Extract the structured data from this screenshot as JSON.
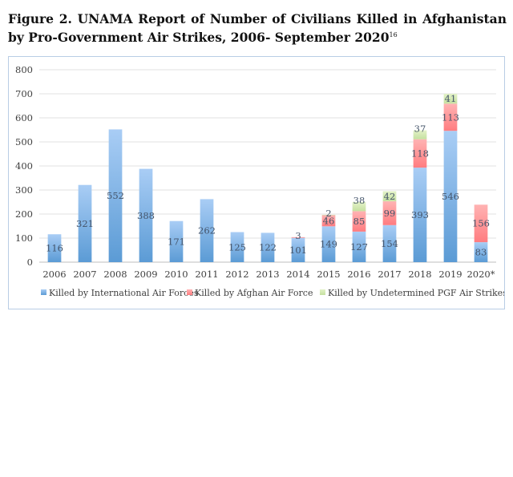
{
  "figure": {
    "title": "Figure 2. UNAMA Report of Number of Civilians Killed in Afghanistan by Pro-Government Air Strikes, 2006- September 2020",
    "footnote_ref": "16"
  },
  "chart_data": {
    "type": "bar",
    "stacked": true,
    "title": "",
    "xlabel": "",
    "ylabel": "",
    "ylim": [
      0,
      800
    ],
    "yticks": [
      "0",
      "100",
      "200",
      "300",
      "400",
      "500",
      "600",
      "700",
      "800"
    ],
    "grid": true,
    "legend_position": "bottom",
    "categories": [
      "2006",
      "2007",
      "2008",
      "2009",
      "2010",
      "2011",
      "2012",
      "2013",
      "2014",
      "2015",
      "2016",
      "2017",
      "2018",
      "2019",
      "2020*"
    ],
    "series": [
      {
        "name": "Killed by International Air Forces",
        "color": "#5b9bd5",
        "values": [
          116,
          321,
          552,
          388,
          171,
          262,
          125,
          122,
          101,
          149,
          127,
          154,
          393,
          546,
          83
        ]
      },
      {
        "name": "Killed by Afghan Air Force",
        "color": "#ff7c80",
        "values": [
          null,
          null,
          null,
          null,
          null,
          null,
          null,
          null,
          3,
          46,
          85,
          99,
          118,
          113,
          156
        ]
      },
      {
        "name": "Killed by Undetermined PGF Air Strikes",
        "color": "#c5e0a0",
        "values": [
          null,
          null,
          null,
          null,
          null,
          null,
          null,
          null,
          null,
          2,
          38,
          42,
          37,
          41,
          null
        ]
      }
    ]
  }
}
